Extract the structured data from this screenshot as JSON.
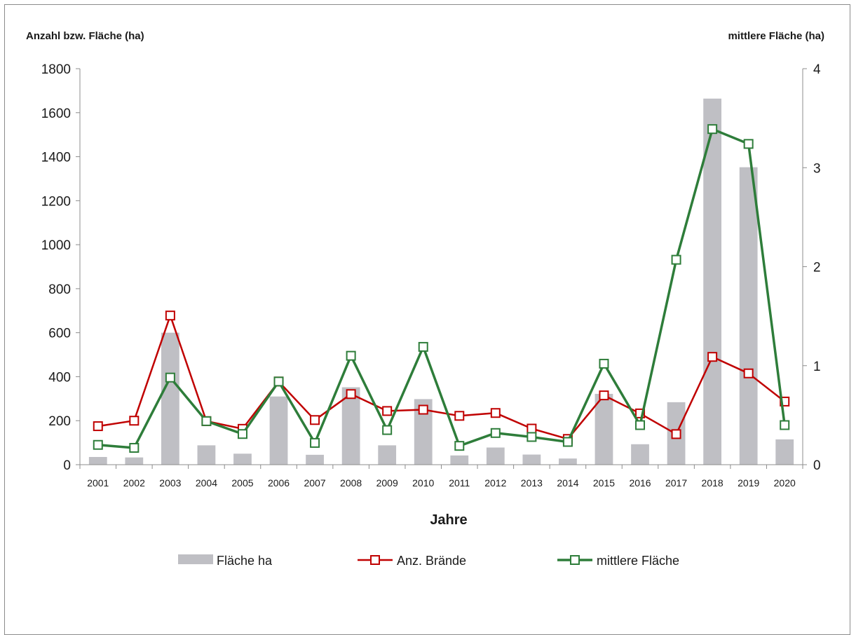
{
  "chart_data": {
    "type": "bar",
    "title": "",
    "xlabel": "Jahre",
    "ylabel": "Anzahl bzw. Fläche (ha)",
    "y2label": "mittlere Fläche (ha)",
    "ylim": [
      0,
      1800
    ],
    "y2lim": [
      0,
      4
    ],
    "yticks": [
      0,
      200,
      400,
      600,
      800,
      1000,
      1200,
      1400,
      1600,
      1800
    ],
    "y2ticks": [
      0,
      1,
      2,
      3,
      4
    ],
    "grid": false,
    "legend_position": "bottom",
    "categories": [
      "2001",
      "2002",
      "2003",
      "2004",
      "2005",
      "2006",
      "2007",
      "2008",
      "2009",
      "2010",
      "2011",
      "2012",
      "2013",
      "2014",
      "2015",
      "2016",
      "2017",
      "2018",
      "2019",
      "2020"
    ],
    "series": [
      {
        "name": "Fläche ha",
        "type": "bar",
        "axis": "left",
        "color": "#bfbfc4",
        "values": [
          35,
          33,
          600,
          88,
          50,
          310,
          45,
          352,
          88,
          298,
          42,
          78,
          46,
          28,
          322,
          93,
          284,
          1664,
          1352,
          115
        ]
      },
      {
        "name": "Anz. Brände",
        "type": "line",
        "axis": "left",
        "color": "#c00000",
        "values": [
          175,
          200,
          678,
          198,
          163,
          378,
          203,
          321,
          244,
          250,
          222,
          235,
          164,
          117,
          315,
          233,
          139,
          490,
          415,
          287
        ]
      },
      {
        "name": "mittlere Fläche",
        "type": "line",
        "axis": "right",
        "color": "#2e7d3a",
        "values": [
          0.2,
          0.17,
          0.88,
          0.44,
          0.31,
          0.84,
          0.22,
          1.1,
          0.35,
          1.19,
          0.19,
          0.32,
          0.28,
          0.23,
          1.02,
          0.4,
          2.07,
          3.39,
          3.24,
          0.4
        ]
      }
    ]
  }
}
